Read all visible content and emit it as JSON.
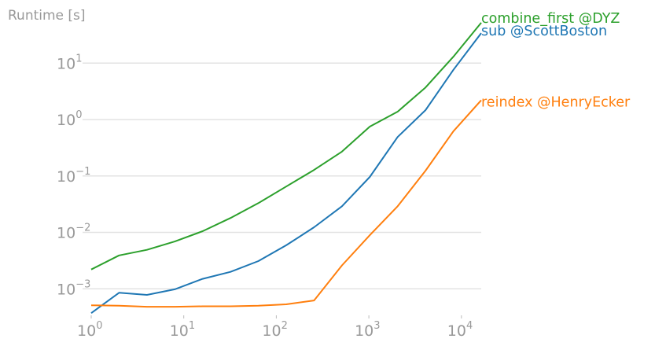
{
  "chart_data": {
    "type": "line",
    "title": "Runtime [s]",
    "xlabel": "",
    "ylabel": "Runtime [s]",
    "xscale": "log",
    "yscale": "log",
    "xlim": [
      1,
      16384
    ],
    "ylim": [
      0.00035,
      50
    ],
    "grid": "horizontal major lines",
    "legend": "inline labels at line ends (right)",
    "x": [
      1,
      2,
      4,
      8,
      16,
      32,
      64,
      128,
      256,
      512,
      1024,
      2048,
      4096,
      8192,
      16384
    ],
    "x_ticks": [
      {
        "value": 1,
        "base": "10",
        "exp": "0"
      },
      {
        "value": 10,
        "base": "10",
        "exp": "1"
      },
      {
        "value": 100,
        "base": "10",
        "exp": "2"
      },
      {
        "value": 1000,
        "base": "10",
        "exp": "3"
      },
      {
        "value": 10000,
        "base": "10",
        "exp": "4"
      }
    ],
    "y_ticks": [
      {
        "value": 0.001,
        "base": "10",
        "exp": "−3"
      },
      {
        "value": 0.01,
        "base": "10",
        "exp": "−2"
      },
      {
        "value": 0.1,
        "base": "10",
        "exp": "−1"
      },
      {
        "value": 1,
        "base": "10",
        "exp": "0"
      },
      {
        "value": 10,
        "base": "10",
        "exp": "1"
      }
    ],
    "series": [
      {
        "name": "combine_first @DYZ",
        "color": "#2ca02c",
        "values": [
          0.0022,
          0.0039,
          0.0049,
          0.0069,
          0.0105,
          0.018,
          0.033,
          0.065,
          0.128,
          0.27,
          0.75,
          1.38,
          3.7,
          13,
          52
        ]
      },
      {
        "name": "sub @ScottBoston",
        "color": "#1f77b4",
        "values": [
          0.00037,
          0.00085,
          0.00078,
          0.00098,
          0.0015,
          0.002,
          0.0031,
          0.0059,
          0.0123,
          0.029,
          0.096,
          0.49,
          1.47,
          7.6,
          34
        ]
      },
      {
        "name": "reindex @HenryEcker",
        "color": "#ff7f0e",
        "values": [
          0.00051,
          0.0005,
          0.00048,
          0.00048,
          0.00049,
          0.00049,
          0.0005,
          0.00053,
          0.00062,
          0.0026,
          0.0089,
          0.029,
          0.124,
          0.62,
          2.2
        ]
      }
    ]
  }
}
